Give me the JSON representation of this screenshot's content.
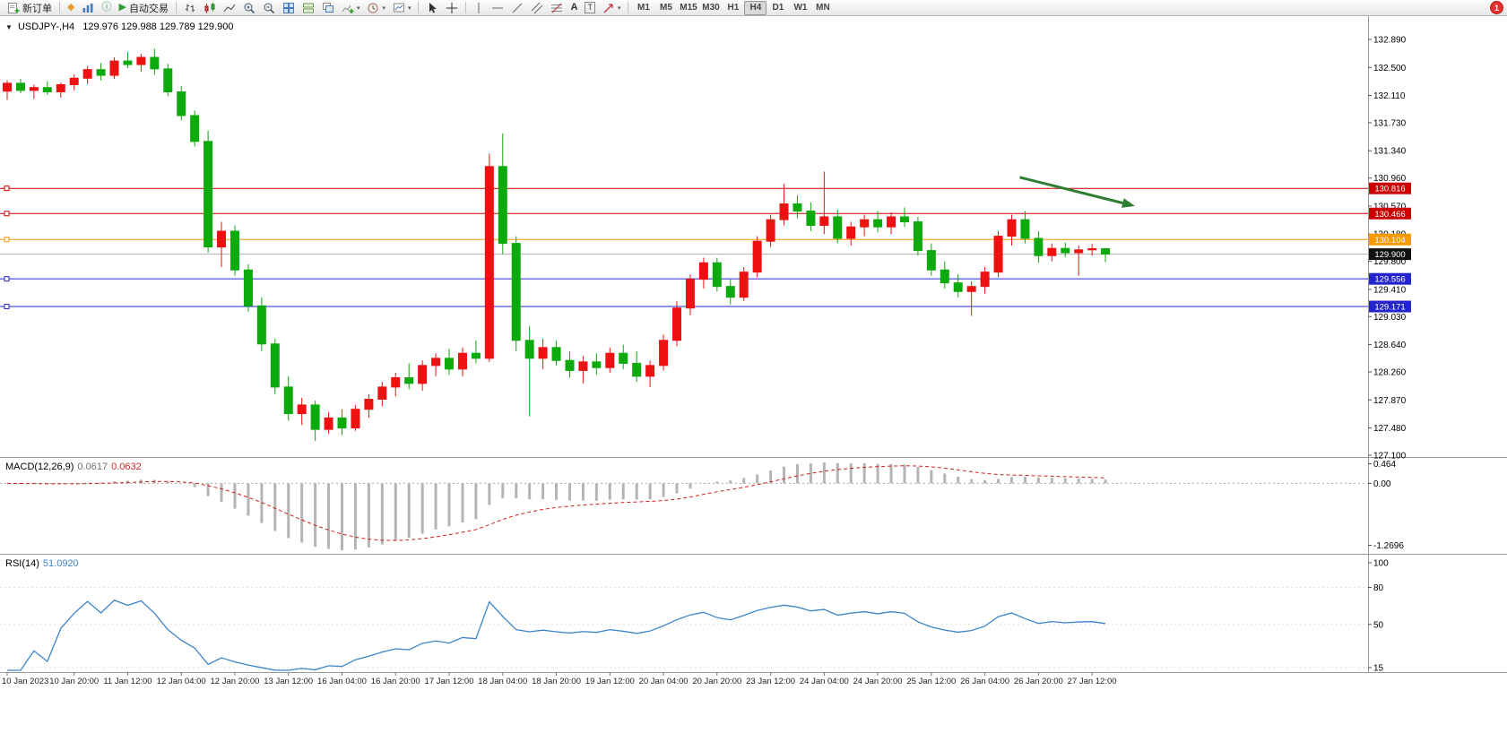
{
  "window": {
    "symbol_period": "USDJPY-,H4",
    "ohlc": "129.976 129.988 129.789 129.900"
  },
  "toolbar": {
    "new_order_label": "新订单",
    "autotrading_label": "自动交易",
    "timeframes": [
      "M1",
      "M5",
      "M15",
      "M30",
      "H1",
      "H4",
      "D1",
      "W1",
      "MN"
    ],
    "active_timeframe": "H4",
    "notification_count": "1"
  },
  "indicators": {
    "macd": {
      "label": "MACD(12,26,9)",
      "value_main": "0.0617",
      "value_signal": "0.0632",
      "ticks": [
        "0.464",
        "0.00",
        "-1.2696"
      ],
      "params": [
        12,
        26,
        9
      ]
    },
    "rsi": {
      "label": "RSI(14)",
      "value": "51.0920",
      "ticks": [
        "100",
        "80",
        "50",
        "15"
      ],
      "params": [
        14
      ]
    }
  },
  "chart_data": {
    "type": "candlestick",
    "symbol": "USDJPY-",
    "timeframe": "H4",
    "price_axis": {
      "max": 132.89,
      "min": 127.1,
      "ticks": [
        "132.890",
        "132.500",
        "132.110",
        "131.730",
        "131.340",
        "130.960",
        "130.570",
        "130.180",
        "129.800",
        "129.410",
        "129.030",
        "128.640",
        "128.260",
        "127.870",
        "127.480",
        "127.100"
      ]
    },
    "time_axis": [
      {
        "i": 0,
        "t": "10 Jan 2023"
      },
      {
        "i": 5,
        "t": "10 Jan 20:00"
      },
      {
        "i": 9,
        "t": "11 Jan 12:00"
      },
      {
        "i": 13,
        "t": "12 Jan 04:00"
      },
      {
        "i": 17,
        "t": "12 Jan 20:00"
      },
      {
        "i": 21,
        "t": "13 Jan 12:00"
      },
      {
        "i": 25,
        "t": "16 Jan 04:00"
      },
      {
        "i": 29,
        "t": "16 Jan 20:00"
      },
      {
        "i": 33,
        "t": "17 Jan 12:00"
      },
      {
        "i": 37,
        "t": "18 Jan 04:00"
      },
      {
        "i": 41,
        "t": "18 Jan 20:00"
      },
      {
        "i": 45,
        "t": "19 Jan 12:00"
      },
      {
        "i": 49,
        "t": "20 Jan 04:00"
      },
      {
        "i": 53,
        "t": "20 Jan 20:00"
      },
      {
        "i": 57,
        "t": "23 Jan 12:00"
      },
      {
        "i": 61,
        "t": "24 Jan 04:00"
      },
      {
        "i": 65,
        "t": "24 Jan 20:00"
      },
      {
        "i": 69,
        "t": "25 Jan 12:00"
      },
      {
        "i": 73,
        "t": "26 Jan 04:00"
      },
      {
        "i": 77,
        "t": "26 Jan 20:00"
      },
      {
        "i": 81,
        "t": "27 Jan 12:00"
      }
    ],
    "candles": [
      [
        132.17,
        132.32,
        132.05,
        132.28
      ],
      [
        132.28,
        132.34,
        132.14,
        132.18
      ],
      [
        132.18,
        132.26,
        132.06,
        132.22
      ],
      [
        132.22,
        132.31,
        132.12,
        132.16
      ],
      [
        132.16,
        132.29,
        132.08,
        132.26
      ],
      [
        132.26,
        132.4,
        132.18,
        132.35
      ],
      [
        132.35,
        132.52,
        132.27,
        132.47
      ],
      [
        132.47,
        132.56,
        132.32,
        132.39
      ],
      [
        132.39,
        132.64,
        132.34,
        132.59
      ],
      [
        132.59,
        132.72,
        132.49,
        132.54
      ],
      [
        132.54,
        132.69,
        132.44,
        132.64
      ],
      [
        132.64,
        132.76,
        132.4,
        132.48
      ],
      [
        132.48,
        132.55,
        132.1,
        132.16
      ],
      [
        132.16,
        132.24,
        131.76,
        131.83
      ],
      [
        131.83,
        131.9,
        131.4,
        131.47
      ],
      [
        131.47,
        131.62,
        129.92,
        130.0
      ],
      [
        130.0,
        130.35,
        129.72,
        130.22
      ],
      [
        130.22,
        130.3,
        129.6,
        129.68
      ],
      [
        129.68,
        129.76,
        129.1,
        129.18
      ],
      [
        129.18,
        129.3,
        128.55,
        128.65
      ],
      [
        128.65,
        128.72,
        127.95,
        128.05
      ],
      [
        128.05,
        128.2,
        127.58,
        127.68
      ],
      [
        127.68,
        127.9,
        127.52,
        127.8
      ],
      [
        127.8,
        127.86,
        127.3,
        127.46
      ],
      [
        127.46,
        127.7,
        127.4,
        127.62
      ],
      [
        127.62,
        127.74,
        127.38,
        127.48
      ],
      [
        127.48,
        127.8,
        127.44,
        127.74
      ],
      [
        127.74,
        127.95,
        127.62,
        127.88
      ],
      [
        127.88,
        128.12,
        127.78,
        128.05
      ],
      [
        128.05,
        128.25,
        127.92,
        128.18
      ],
      [
        128.18,
        128.38,
        128.02,
        128.1
      ],
      [
        128.1,
        128.42,
        128.0,
        128.35
      ],
      [
        128.35,
        128.52,
        128.2,
        128.45
      ],
      [
        128.45,
        128.58,
        128.22,
        128.3
      ],
      [
        128.3,
        128.6,
        128.2,
        128.52
      ],
      [
        128.52,
        128.7,
        128.38,
        128.45
      ],
      [
        128.45,
        131.3,
        128.4,
        131.12
      ],
      [
        131.12,
        131.58,
        129.9,
        130.05
      ],
      [
        130.05,
        130.15,
        128.55,
        128.7
      ],
      [
        128.7,
        128.9,
        127.64,
        128.45
      ],
      [
        128.45,
        128.72,
        128.3,
        128.6
      ],
      [
        128.6,
        128.7,
        128.35,
        128.42
      ],
      [
        128.42,
        128.55,
        128.18,
        128.28
      ],
      [
        128.28,
        128.48,
        128.1,
        128.4
      ],
      [
        128.4,
        128.52,
        128.22,
        128.32
      ],
      [
        128.32,
        128.6,
        128.25,
        128.52
      ],
      [
        128.52,
        128.64,
        128.3,
        128.38
      ],
      [
        128.38,
        128.55,
        128.12,
        128.2
      ],
      [
        128.2,
        128.42,
        128.05,
        128.35
      ],
      [
        128.35,
        128.78,
        128.28,
        128.7
      ],
      [
        128.7,
        129.25,
        128.62,
        129.15
      ],
      [
        129.15,
        129.62,
        129.05,
        129.55
      ],
      [
        129.55,
        129.85,
        129.42,
        129.78
      ],
      [
        129.78,
        129.85,
        129.38,
        129.45
      ],
      [
        129.45,
        129.55,
        129.2,
        129.3
      ],
      [
        129.3,
        129.72,
        129.25,
        129.65
      ],
      [
        129.65,
        130.15,
        129.58,
        130.08
      ],
      [
        130.08,
        130.45,
        130.0,
        130.38
      ],
      [
        130.38,
        130.88,
        130.3,
        130.6
      ],
      [
        130.6,
        130.72,
        130.4,
        130.5
      ],
      [
        130.5,
        130.62,
        130.22,
        130.3
      ],
      [
        130.3,
        131.05,
        130.18,
        130.42
      ],
      [
        130.42,
        130.52,
        130.05,
        130.12
      ],
      [
        130.12,
        130.35,
        130.02,
        130.28
      ],
      [
        130.28,
        130.45,
        130.15,
        130.38
      ],
      [
        130.38,
        130.5,
        130.2,
        130.28
      ],
      [
        130.28,
        130.48,
        130.18,
        130.42
      ],
      [
        130.42,
        130.55,
        130.28,
        130.35
      ],
      [
        130.35,
        130.42,
        129.88,
        129.95
      ],
      [
        129.95,
        130.05,
        129.6,
        129.68
      ],
      [
        129.68,
        129.8,
        129.42,
        129.5
      ],
      [
        129.5,
        129.62,
        129.3,
        129.38
      ],
      [
        129.38,
        129.52,
        129.04,
        129.45
      ],
      [
        129.45,
        129.72,
        129.35,
        129.65
      ],
      [
        129.65,
        130.22,
        129.58,
        130.15
      ],
      [
        130.15,
        130.45,
        130.02,
        130.38
      ],
      [
        130.38,
        130.5,
        130.05,
        130.12
      ],
      [
        130.12,
        130.22,
        129.78,
        129.88
      ],
      [
        129.88,
        130.05,
        129.8,
        129.98
      ],
      [
        129.98,
        130.06,
        129.86,
        129.92
      ],
      [
        129.92,
        130.02,
        129.6,
        129.96
      ],
      [
        129.96,
        130.04,
        129.88,
        129.976
      ],
      [
        129.976,
        129.988,
        129.789,
        129.9
      ]
    ],
    "hlines": [
      {
        "price": 130.816,
        "color": "#cc0000",
        "label": "130.816"
      },
      {
        "price": 130.466,
        "color": "#cc0000",
        "label": "130.466"
      },
      {
        "price": 130.104,
        "color": "#f59a00",
        "label": "130.104"
      },
      {
        "price": 129.9,
        "color": "#b0b0b0",
        "tag_color": "#111111",
        "label": "129.900",
        "current": true
      },
      {
        "price": 129.556,
        "color": "#2424cc",
        "label": "129.556"
      },
      {
        "price": 129.171,
        "color": "#2424cc",
        "label": "129.171"
      }
    ],
    "arrow": {
      "i1": 75.6,
      "p1": 130.97,
      "i2": 84.2,
      "p2": 130.57,
      "color": "#2e7d32"
    },
    "colors": {
      "bull": "#ee1111",
      "bear": "#0caa0c",
      "macd_hist": "#b4b4b4",
      "macd_signal": "#d02020",
      "rsi_line": "#3d85c8",
      "separator": "#9a9a9a"
    }
  }
}
